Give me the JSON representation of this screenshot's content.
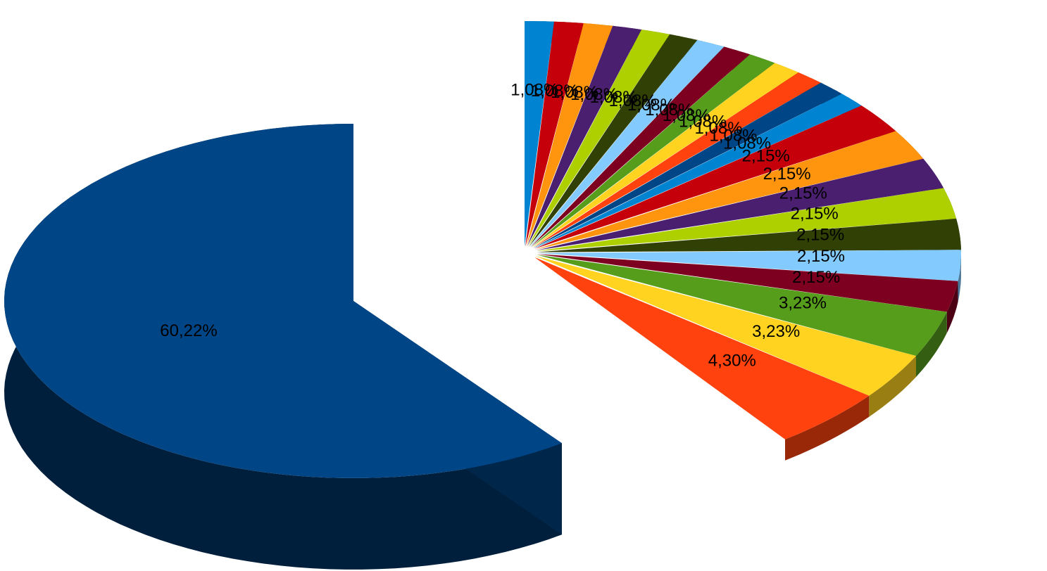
{
  "chart_data": {
    "type": "pie",
    "variant": "3d-exploded",
    "title": "",
    "legend": "none",
    "slices": [
      {
        "value": 60.22,
        "label": "60,22%",
        "color": "#004586"
      },
      {
        "value": 4.3,
        "label": "4,30%",
        "color": "#ff420e"
      },
      {
        "value": 3.23,
        "label": "3,23%",
        "color": "#ffd320"
      },
      {
        "value": 3.23,
        "label": "3,23%",
        "color": "#579d1c"
      },
      {
        "value": 2.15,
        "label": "2,15%",
        "color": "#7e0021"
      },
      {
        "value": 2.15,
        "label": "2,15%",
        "color": "#83caff"
      },
      {
        "value": 2.15,
        "label": "2,15%",
        "color": "#314004"
      },
      {
        "value": 2.15,
        "label": "2,15%",
        "color": "#aecf00"
      },
      {
        "value": 2.15,
        "label": "2,15%",
        "color": "#4b1f6f"
      },
      {
        "value": 2.15,
        "label": "2,15%",
        "color": "#ff950e"
      },
      {
        "value": 2.15,
        "label": "2,15%",
        "color": "#c5000b"
      },
      {
        "value": 1.08,
        "label": "1,08%",
        "color": "#0084d1"
      },
      {
        "value": 1.08,
        "label": "1,08%",
        "color": "#004586"
      },
      {
        "value": 1.08,
        "label": "1,08%",
        "color": "#ff420e"
      },
      {
        "value": 1.08,
        "label": "1,08%",
        "color": "#ffd320"
      },
      {
        "value": 1.08,
        "label": "1,08%",
        "color": "#579d1c"
      },
      {
        "value": 1.08,
        "label": "1,08%",
        "color": "#7e0021"
      },
      {
        "value": 1.08,
        "label": "1,08%",
        "color": "#83caff"
      },
      {
        "value": 1.08,
        "label": "1,08%",
        "color": "#314004"
      },
      {
        "value": 1.08,
        "label": "1,08%",
        "color": "#aecf00"
      },
      {
        "value": 1.08,
        "label": "1,08%",
        "color": "#4b1f6f"
      },
      {
        "value": 1.08,
        "label": "1,08%",
        "color": "#ff950e"
      },
      {
        "value": 1.08,
        "label": "1,08%",
        "color": "#c5000b"
      },
      {
        "value": 1.08,
        "label": "1,08%",
        "color": "#0084d1"
      }
    ]
  }
}
